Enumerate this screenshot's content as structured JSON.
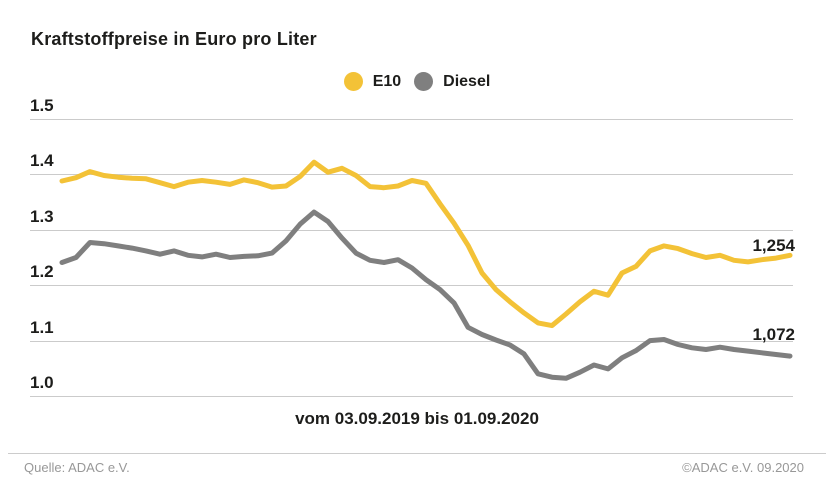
{
  "title": "Kraftstoffpreise in Euro pro Liter",
  "footer": {
    "source": "Quelle: ADAC e.V.",
    "copyright": "©ADAC e.V. 09.2020"
  },
  "colors": {
    "e10": "#F3C237",
    "diesel": "#7F7F7F",
    "gridline": "#cbcbcb",
    "text": "#1d1d1b",
    "footer_text": "#989898"
  },
  "chart_data": {
    "type": "line",
    "title": "Kraftstoffpreise in Euro pro Liter",
    "x_caption": "vom 03.09.2019 bis 01.09.2020",
    "x_range": [
      "03.09.2019",
      "01.09.2020"
    ],
    "ylim": [
      1.0,
      1.5
    ],
    "yticks": [
      "1.5",
      "1.4",
      "1.3",
      "1.2",
      "1.1",
      "1.0"
    ],
    "grid": "horizontal",
    "legend_position": "top-center",
    "unit": "Euro pro Liter",
    "series": [
      {
        "name": "E10",
        "color": "#F3C237",
        "end_label": "1,254",
        "last_value": 1.254,
        "values": [
          1.388,
          1.394,
          1.405,
          1.398,
          1.395,
          1.393,
          1.392,
          1.385,
          1.378,
          1.386,
          1.389,
          1.386,
          1.382,
          1.39,
          1.385,
          1.377,
          1.379,
          1.396,
          1.422,
          1.404,
          1.411,
          1.398,
          1.378,
          1.376,
          1.379,
          1.389,
          1.384,
          1.347,
          1.312,
          1.272,
          1.222,
          1.192,
          1.17,
          1.15,
          1.132,
          1.127,
          1.148,
          1.17,
          1.189,
          1.182,
          1.222,
          1.234,
          1.262,
          1.271,
          1.266,
          1.257,
          1.25,
          1.254,
          1.245,
          1.242,
          1.246,
          1.249,
          1.254
        ]
      },
      {
        "name": "Diesel",
        "color": "#7F7F7F",
        "end_label": "1,072",
        "last_value": 1.072,
        "values": [
          1.241,
          1.25,
          1.277,
          1.275,
          1.271,
          1.267,
          1.262,
          1.256,
          1.262,
          1.254,
          1.251,
          1.256,
          1.25,
          1.252,
          1.253,
          1.258,
          1.28,
          1.31,
          1.332,
          1.315,
          1.285,
          1.258,
          1.245,
          1.241,
          1.246,
          1.231,
          1.21,
          1.192,
          1.168,
          1.124,
          1.111,
          1.101,
          1.092,
          1.076,
          1.04,
          1.034,
          1.032,
          1.043,
          1.056,
          1.049,
          1.069,
          1.082,
          1.1,
          1.102,
          1.093,
          1.087,
          1.084,
          1.088,
          1.084,
          1.081,
          1.078,
          1.075,
          1.072
        ]
      }
    ]
  }
}
